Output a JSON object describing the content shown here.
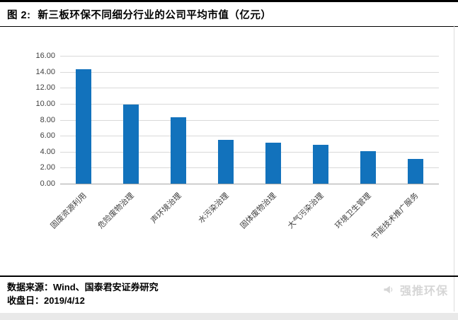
{
  "header": {
    "title_prefix": "图 2:",
    "title_text": "新三板环保不同细分行业的公司平均市值（亿元）"
  },
  "chart_data": {
    "type": "bar",
    "title": "新三板环保不同细分行业的公司平均市值（亿元）",
    "categories": [
      "固废资源利用",
      "危险废物治理",
      "声环境治理",
      "水污染治理",
      "固体废物治理",
      "大气污染治理",
      "环境卫生管理",
      "节能技术推广服务"
    ],
    "values": [
      14.3,
      9.9,
      8.3,
      5.5,
      5.1,
      4.9,
      4.1,
      3.1
    ],
    "xlabel": "",
    "ylabel": "",
    "ylim": [
      0,
      16
    ],
    "ytick_step": 2,
    "ytick_format_decimals": 2,
    "grid": true,
    "legend": "none",
    "bar_color": "#1272bc",
    "gridline_color": "#d9d9d9",
    "axis_line_color": "#a6a6a6",
    "tick_label_color": "#3f3f3f"
  },
  "footer": {
    "source_label": "数据来源：",
    "source_value": "Wind、国泰君安证券研究",
    "date_label": "收盘日：",
    "date_value": "2019/4/12",
    "watermark_text": "强推环保"
  }
}
